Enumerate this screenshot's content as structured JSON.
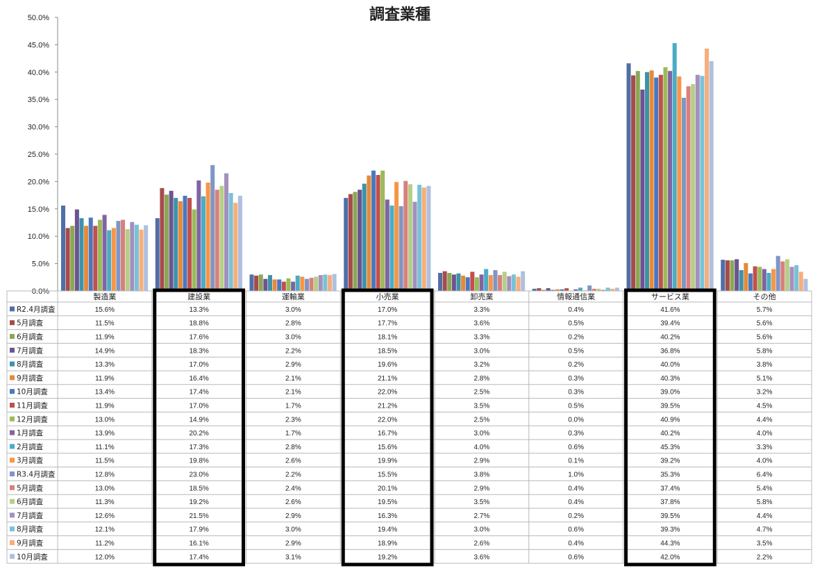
{
  "chart_data": {
    "type": "bar",
    "title": "調査業種",
    "ylim": [
      0,
      50
    ],
    "yticks": [
      "0.0%",
      "5.0%",
      "10.0%",
      "15.0%",
      "20.0%",
      "25.0%",
      "30.0%",
      "35.0%",
      "40.0%",
      "45.0%",
      "50.0%"
    ],
    "grid": false,
    "legend": "table-left",
    "categories": [
      "製造業",
      "建設業",
      "運輸業",
      "小売業",
      "卸売業",
      "情報通信業",
      "サービス業",
      "その他"
    ],
    "highlighted_categories": [
      "建設業",
      "小売業",
      "サービス業"
    ],
    "series": [
      {
        "name": "R2.4月調査",
        "color": "#4F6FA6",
        "values": [
          15.6,
          13.3,
          3.0,
          17.0,
          3.3,
          0.4,
          41.6,
          5.7
        ],
        "labels": [
          "15.6%",
          "13.3%",
          "3.0%",
          "17.0%",
          "3.3%",
          "0.4%",
          "41.6%",
          "5.7%"
        ]
      },
      {
        "name": "5月調査",
        "color": "#A64B4B",
        "values": [
          11.5,
          18.8,
          2.8,
          17.7,
          3.6,
          0.5,
          39.4,
          5.6
        ],
        "labels": [
          "11.5%",
          "18.8%",
          "2.8%",
          "17.7%",
          "3.6%",
          "0.5%",
          "39.4%",
          "5.6%"
        ]
      },
      {
        "name": "6月調査",
        "color": "#8BA755",
        "values": [
          11.9,
          17.6,
          3.0,
          18.1,
          3.3,
          0.2,
          40.2,
          5.6
        ],
        "labels": [
          "11.9%",
          "17.6%",
          "3.0%",
          "18.1%",
          "3.3%",
          "0.2%",
          "40.2%",
          "5.6%"
        ]
      },
      {
        "name": "7月調査",
        "color": "#6B5490",
        "values": [
          14.9,
          18.3,
          2.2,
          18.5,
          3.0,
          0.5,
          36.8,
          5.8
        ],
        "labels": [
          "14.9%",
          "18.3%",
          "2.2%",
          "18.5%",
          "3.0%",
          "0.5%",
          "36.8%",
          "5.8%"
        ]
      },
      {
        "name": "8月調査",
        "color": "#3E92A8",
        "values": [
          13.3,
          17.0,
          2.9,
          19.6,
          3.2,
          0.2,
          40.0,
          3.8
        ],
        "labels": [
          "13.3%",
          "17.0%",
          "2.9%",
          "19.6%",
          "3.2%",
          "0.2%",
          "40.0%",
          "3.8%"
        ]
      },
      {
        "name": "9月調査",
        "color": "#E58A3A",
        "values": [
          11.9,
          16.4,
          2.1,
          21.1,
          2.8,
          0.3,
          40.3,
          5.1
        ],
        "labels": [
          "11.9%",
          "16.4%",
          "2.1%",
          "21.1%",
          "2.8%",
          "0.3%",
          "40.3%",
          "5.1%"
        ]
      },
      {
        "name": "10月調査",
        "color": "#4A78C0",
        "values": [
          13.4,
          17.4,
          2.1,
          22.0,
          2.5,
          0.3,
          39.0,
          3.2
        ],
        "labels": [
          "13.4%",
          "17.4%",
          "2.1%",
          "22.0%",
          "2.5%",
          "0.3%",
          "39.0%",
          "3.2%"
        ]
      },
      {
        "name": "11月調査",
        "color": "#C0504D",
        "values": [
          11.9,
          17.0,
          1.7,
          21.2,
          3.5,
          0.5,
          39.5,
          4.5
        ],
        "labels": [
          "11.9%",
          "17.0%",
          "1.7%",
          "21.2%",
          "3.5%",
          "0.5%",
          "39.5%",
          "4.5%"
        ]
      },
      {
        "name": "12月調査",
        "color": "#9BBB59",
        "values": [
          13.0,
          14.9,
          2.3,
          22.0,
          2.5,
          0.0,
          40.9,
          4.4
        ],
        "labels": [
          "13.0%",
          "14.9%",
          "2.3%",
          "22.0%",
          "2.5%",
          "0.0%",
          "40.9%",
          "4.4%"
        ]
      },
      {
        "name": "1月調査",
        "color": "#8064A2",
        "values": [
          13.9,
          20.2,
          1.7,
          16.7,
          3.0,
          0.3,
          40.2,
          4.0
        ],
        "labels": [
          "13.9%",
          "20.2%",
          "1.7%",
          "16.7%",
          "3.0%",
          "0.3%",
          "40.2%",
          "4.0%"
        ]
      },
      {
        "name": "2月調査",
        "color": "#4BACC6",
        "values": [
          11.1,
          17.3,
          2.8,
          15.6,
          4.0,
          0.6,
          45.3,
          3.3
        ],
        "labels": [
          "11.1%",
          "17.3%",
          "2.8%",
          "15.6%",
          "4.0%",
          "0.6%",
          "45.3%",
          "3.3%"
        ]
      },
      {
        "name": "3月調査",
        "color": "#F79646",
        "values": [
          11.5,
          19.8,
          2.6,
          19.9,
          2.9,
          0.1,
          39.2,
          4.0
        ],
        "labels": [
          "11.5%",
          "19.8%",
          "2.6%",
          "19.9%",
          "2.9%",
          "0.1%",
          "39.2%",
          "4.0%"
        ]
      },
      {
        "name": "R3.4月調査",
        "color": "#7F96C4",
        "values": [
          12.8,
          23.0,
          2.2,
          15.5,
          3.8,
          1.0,
          35.3,
          6.4
        ],
        "labels": [
          "12.8%",
          "23.0%",
          "2.2%",
          "15.5%",
          "3.8%",
          "1.0%",
          "35.3%",
          "6.4%"
        ]
      },
      {
        "name": "5月調査",
        "color": "#D9807E",
        "values": [
          13.0,
          18.5,
          2.4,
          20.1,
          2.9,
          0.4,
          37.4,
          5.4
        ],
        "labels": [
          "13.0%",
          "18.5%",
          "2.4%",
          "20.1%",
          "2.9%",
          "0.4%",
          "37.4%",
          "5.4%"
        ]
      },
      {
        "name": "6月調査",
        "color": "#B5CF85",
        "values": [
          11.3,
          19.2,
          2.6,
          19.5,
          3.5,
          0.4,
          37.8,
          5.8
        ],
        "labels": [
          "11.3%",
          "19.2%",
          "2.6%",
          "19.5%",
          "3.5%",
          "0.4%",
          "37.8%",
          "5.8%"
        ]
      },
      {
        "name": "7月調査",
        "color": "#A390BE",
        "values": [
          12.6,
          21.5,
          2.9,
          16.3,
          2.7,
          0.2,
          39.5,
          4.4
        ],
        "labels": [
          "12.6%",
          "21.5%",
          "2.9%",
          "16.3%",
          "2.7%",
          "0.2%",
          "39.5%",
          "4.4%"
        ]
      },
      {
        "name": "8月調査",
        "color": "#79C2D6",
        "values": [
          12.1,
          17.9,
          3.0,
          19.4,
          3.0,
          0.6,
          39.3,
          4.7
        ],
        "labels": [
          "12.1%",
          "17.9%",
          "3.0%",
          "19.4%",
          "3.0%",
          "0.6%",
          "39.3%",
          "4.7%"
        ]
      },
      {
        "name": "9月調査",
        "color": "#F8AE7A",
        "values": [
          11.2,
          16.1,
          2.9,
          18.9,
          2.6,
          0.4,
          44.3,
          3.5
        ],
        "labels": [
          "11.2%",
          "16.1%",
          "2.9%",
          "18.9%",
          "2.6%",
          "0.4%",
          "44.3%",
          "3.5%"
        ]
      },
      {
        "name": "10月調査",
        "color": "#AFC0DE",
        "values": [
          12.0,
          17.4,
          3.1,
          19.2,
          3.6,
          0.6,
          42.0,
          2.2
        ],
        "labels": [
          "12.0%",
          "17.4%",
          "3.1%",
          "19.2%",
          "3.6%",
          "0.6%",
          "42.0%",
          "2.2%"
        ]
      }
    ]
  }
}
